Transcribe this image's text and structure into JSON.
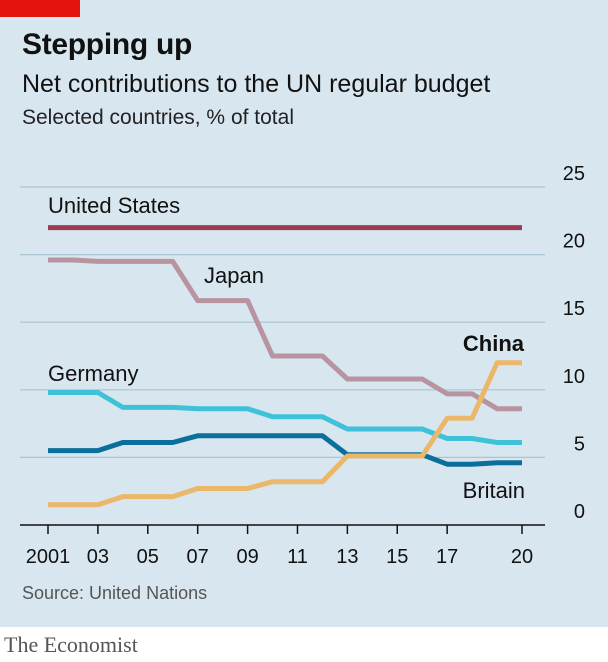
{
  "header": {
    "title": "Stepping up",
    "subtitle": "Net contributions to the UN regular budget",
    "note": "Selected countries, % of total"
  },
  "footer": {
    "source": "Source: United Nations",
    "brand": "The Economist"
  },
  "colors": {
    "panel": "#d8e7ef",
    "accent": "#e3120b",
    "grid": "#a9c4d3",
    "axis": "#111111"
  },
  "chart_data": {
    "type": "line",
    "x": [
      2001,
      2002,
      2003,
      2004,
      2005,
      2006,
      2007,
      2008,
      2009,
      2010,
      2011,
      2012,
      2013,
      2014,
      2015,
      2016,
      2017,
      2018,
      2019,
      2020
    ],
    "x_tick_values": [
      2001,
      2003,
      2005,
      2007,
      2009,
      2011,
      2013,
      2015,
      2017,
      2020
    ],
    "x_tick_labels": [
      "2001",
      "03",
      "05",
      "07",
      "09",
      "11",
      "13",
      "15",
      "17",
      "20"
    ],
    "y_ticks": [
      0,
      5,
      10,
      15,
      20,
      25
    ],
    "ylim": [
      0,
      25
    ],
    "xlim": [
      2001,
      2020
    ],
    "grid": true,
    "series": [
      {
        "name": "United States",
        "color": "#9e3a50",
        "bold": false,
        "values": [
          22,
          22,
          22,
          22,
          22,
          22,
          22,
          22,
          22,
          22,
          22,
          22,
          22,
          22,
          22,
          22,
          22,
          22,
          22,
          22
        ]
      },
      {
        "name": "Japan",
        "color": "#b893a0",
        "bold": false,
        "values": [
          19.6,
          19.6,
          19.5,
          19.5,
          19.5,
          19.5,
          16.6,
          16.6,
          16.6,
          12.5,
          12.5,
          12.5,
          10.8,
          10.8,
          10.8,
          10.8,
          9.7,
          9.7,
          8.6,
          8.6
        ]
      },
      {
        "name": "Germany",
        "color": "#3fc2d9",
        "bold": false,
        "values": [
          9.8,
          9.8,
          9.8,
          8.7,
          8.7,
          8.7,
          8.6,
          8.6,
          8.6,
          8.0,
          8.0,
          8.0,
          7.1,
          7.1,
          7.1,
          7.1,
          6.4,
          6.4,
          6.1,
          6.1
        ]
      },
      {
        "name": "Britain",
        "color": "#0c6e9a",
        "bold": false,
        "values": [
          5.5,
          5.5,
          5.5,
          6.1,
          6.1,
          6.1,
          6.6,
          6.6,
          6.6,
          6.6,
          6.6,
          6.6,
          5.2,
          5.2,
          5.2,
          5.2,
          4.5,
          4.5,
          4.6,
          4.6
        ]
      },
      {
        "name": "China",
        "color": "#ebb76a",
        "bold": true,
        "values": [
          1.5,
          1.5,
          1.5,
          2.1,
          2.1,
          2.1,
          2.7,
          2.7,
          2.7,
          3.2,
          3.2,
          3.2,
          5.1,
          5.1,
          5.1,
          5.1,
          7.9,
          7.9,
          12.0,
          12.0
        ]
      }
    ]
  }
}
